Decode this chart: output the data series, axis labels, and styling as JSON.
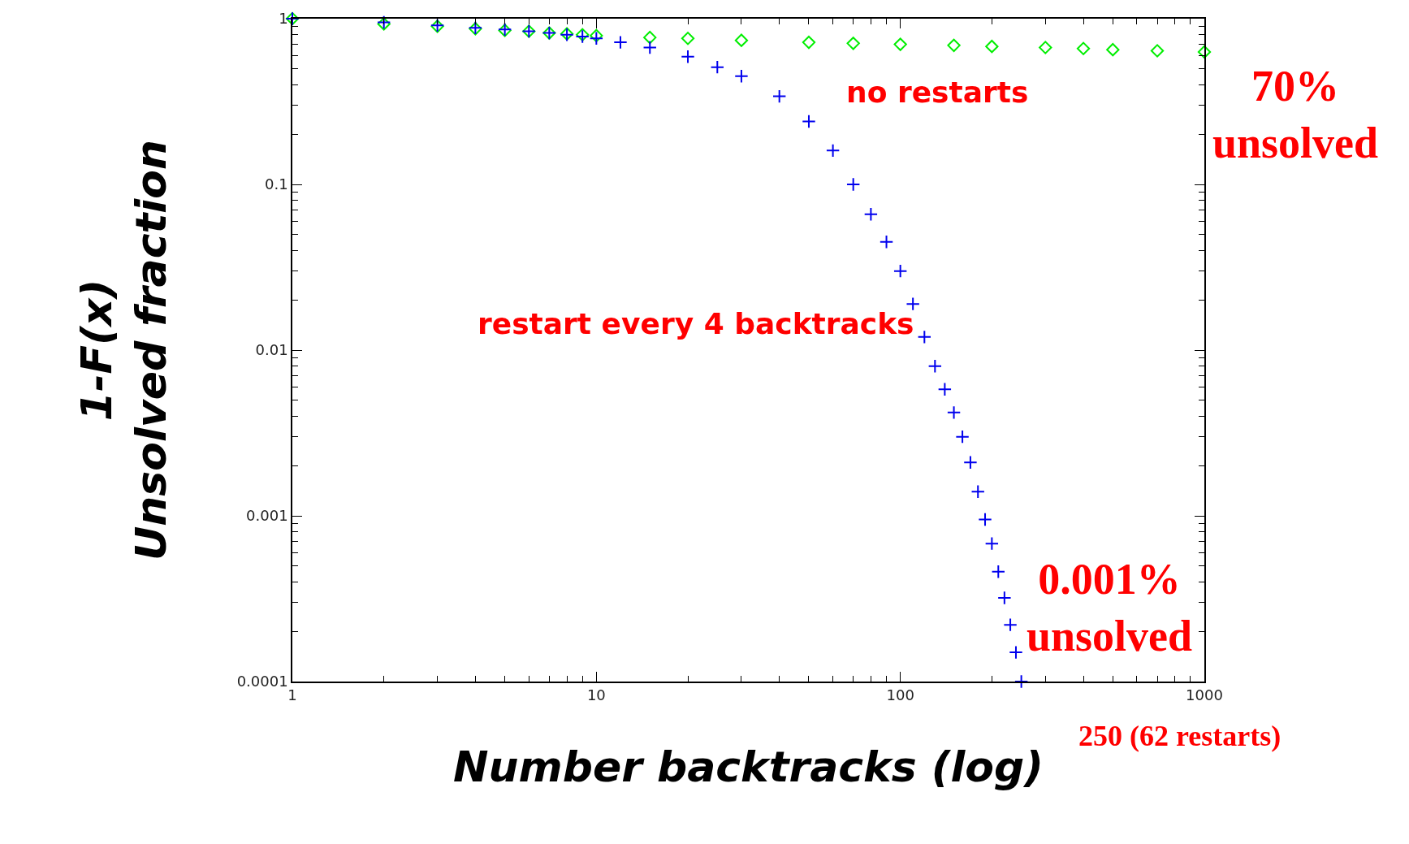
{
  "chart_data": {
    "type": "scatter",
    "xlabel": "Number backtracks (log)",
    "ylabel": "1-F(x)\nUnsolved fraction",
    "log": "xy",
    "xlim": [
      1,
      1000
    ],
    "ylim": [
      0.0001,
      1
    ],
    "xticks": [
      1,
      10,
      100,
      1000
    ],
    "yticks": [
      0.0001,
      0.001,
      0.01,
      0.1,
      1
    ],
    "series": [
      {
        "color": "#00ee00",
        "marker": "diamond",
        "x": [
          1,
          2,
          3,
          4,
          5,
          6,
          7,
          8,
          9,
          10,
          15,
          20,
          30,
          50,
          70,
          100,
          150,
          200,
          300,
          400,
          500,
          700,
          1000
        ],
        "values": [
          1,
          0.93,
          0.9,
          0.87,
          0.85,
          0.84,
          0.82,
          0.81,
          0.8,
          0.79,
          0.77,
          0.76,
          0.74,
          0.72,
          0.71,
          0.7,
          0.69,
          0.68,
          0.67,
          0.66,
          0.65,
          0.64,
          0.63
        ]
      },
      {
        "color": "#0000ee",
        "marker": "cross",
        "x": [
          1,
          2,
          3,
          4,
          5,
          6,
          7,
          8,
          9,
          10,
          12,
          15,
          20,
          25,
          30,
          40,
          50,
          60,
          70,
          80,
          90,
          100,
          110,
          120,
          130,
          140,
          150,
          160,
          170,
          180,
          190,
          200,
          210,
          220,
          230,
          240,
          250
        ],
        "values": [
          1,
          0.95,
          0.91,
          0.88,
          0.86,
          0.84,
          0.82,
          0.8,
          0.78,
          0.76,
          0.72,
          0.67,
          0.59,
          0.51,
          0.45,
          0.34,
          0.24,
          0.16,
          0.1,
          0.066,
          0.045,
          0.03,
          0.019,
          0.012,
          0.008,
          0.0058,
          0.0042,
          0.003,
          0.0021,
          0.0014,
          0.00095,
          0.00068,
          0.00046,
          0.00032,
          0.00022,
          0.00015,
          0.0001
        ]
      }
    ],
    "annotations": [
      "no restarts",
      "restart every 4 backtracks",
      "70%\nunsolved",
      "0.001%\nunsolved",
      "250 (62 restarts)"
    ]
  }
}
